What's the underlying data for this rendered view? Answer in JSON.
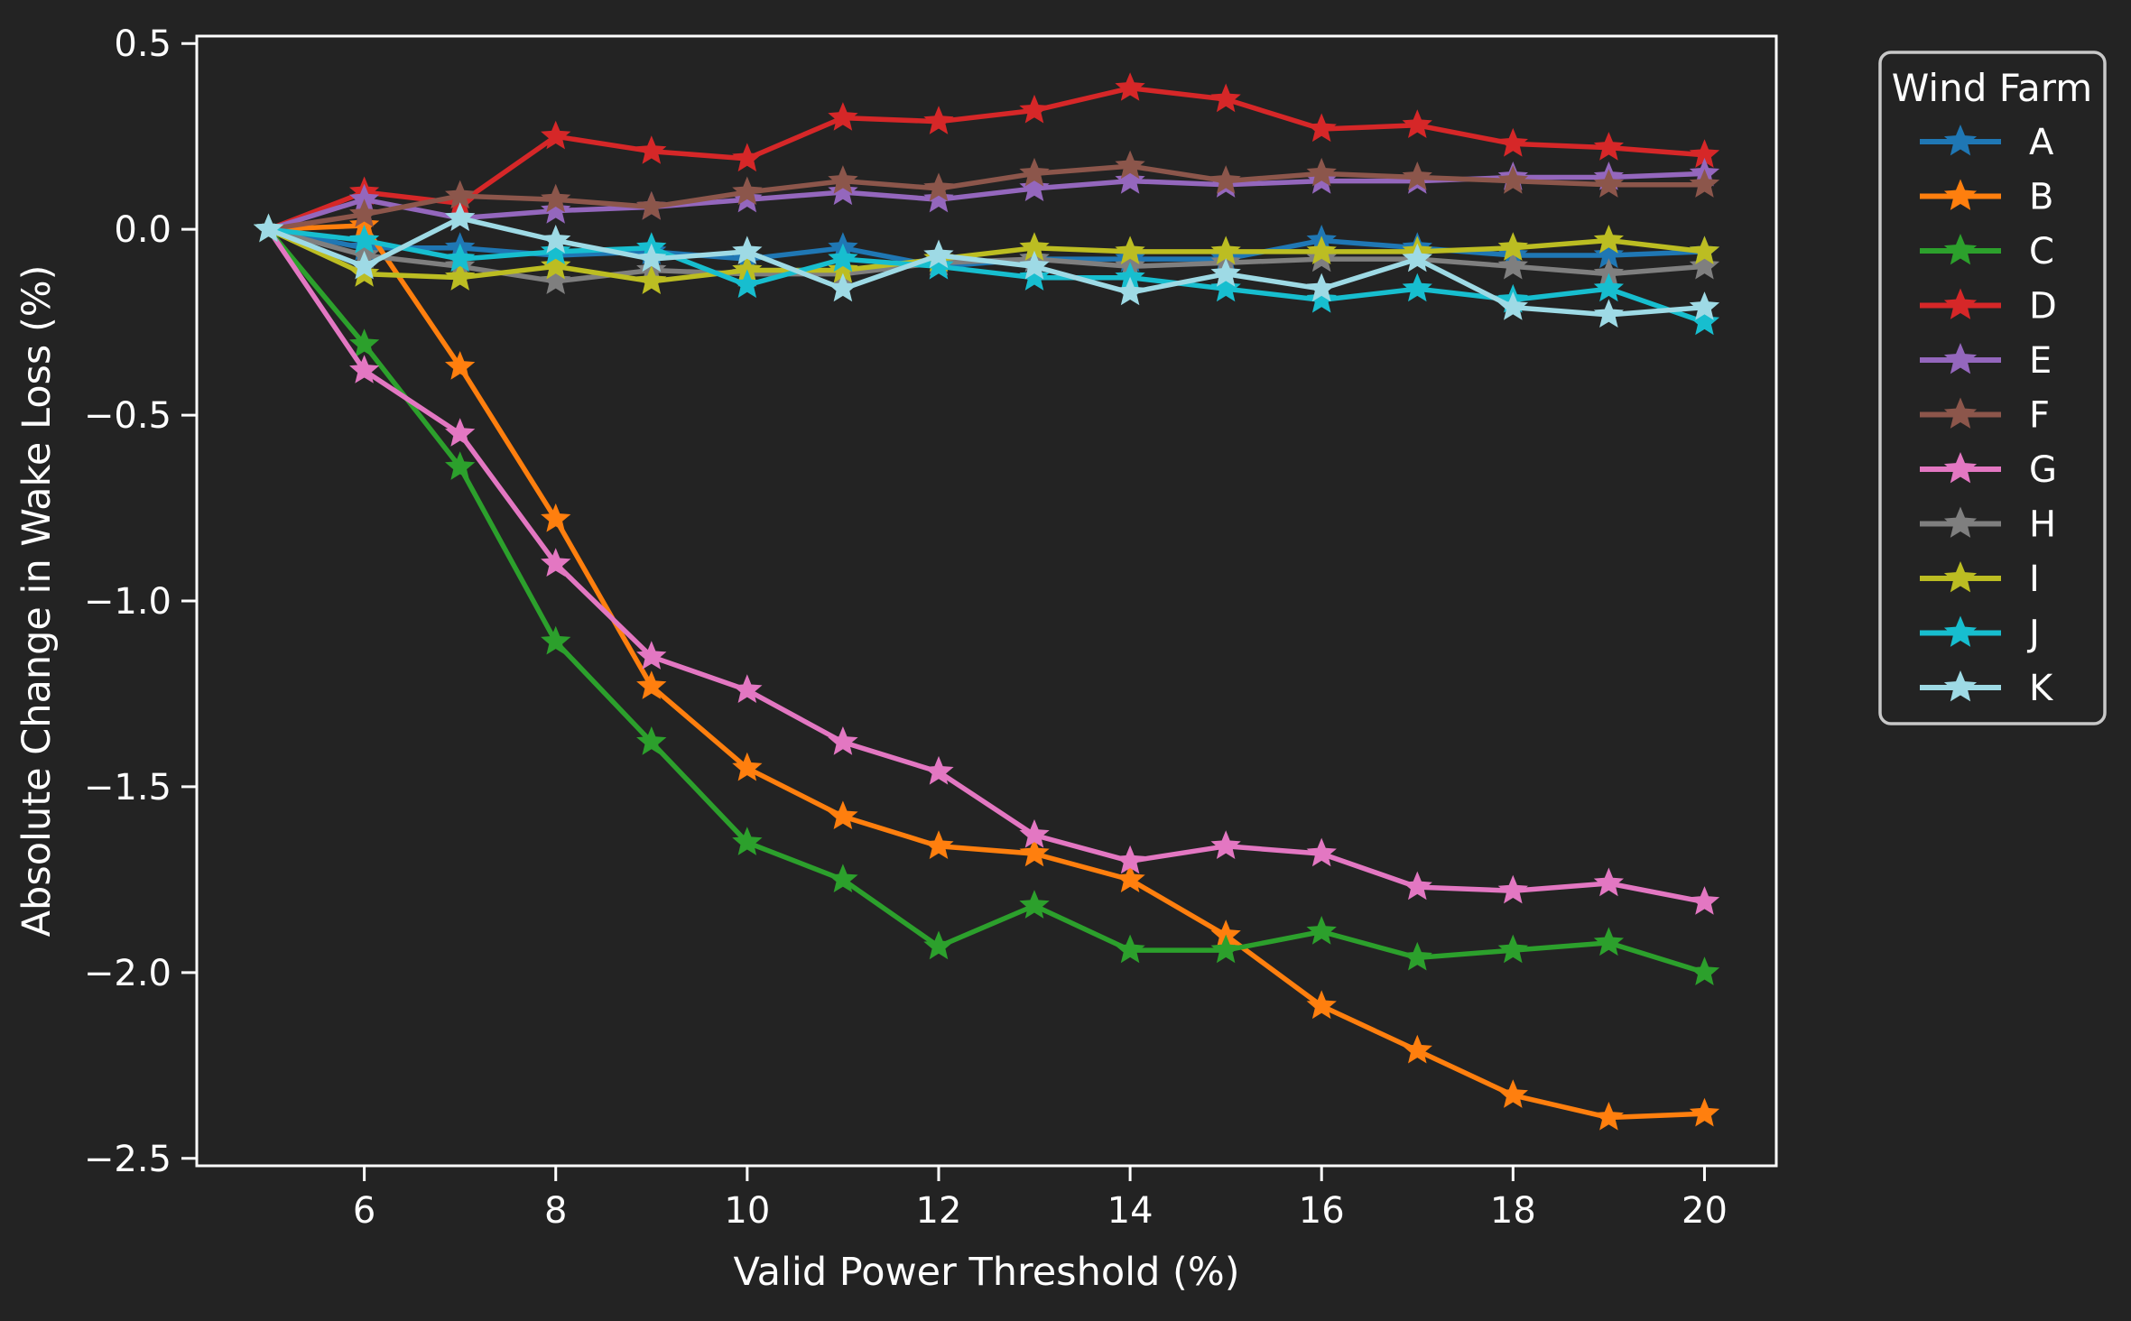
{
  "figure": {
    "background": "#232323",
    "foreground": "#ffffff",
    "legend_border": "#c8c8c8"
  },
  "chart_data": {
    "type": "line",
    "title": "",
    "xlabel": "Valid Power Threshold (%)",
    "ylabel": "Absolute Change in Wake Loss (%)",
    "marker": "star",
    "grid": false,
    "xlim": [
      4.25,
      20.75
    ],
    "ylim": [
      -2.52,
      0.52
    ],
    "xticks": [
      6,
      8,
      10,
      12,
      14,
      16,
      18,
      20
    ],
    "xtick_labels": [
      "6",
      "8",
      "10",
      "12",
      "14",
      "16",
      "18",
      "20"
    ],
    "yticks": [
      0.5,
      0.0,
      -0.5,
      -1.0,
      -1.5,
      -2.0,
      -2.5
    ],
    "ytick_labels": [
      "0.5",
      "0.0",
      "−0.5",
      "−1.0",
      "−1.5",
      "−2.0",
      "−2.5"
    ],
    "legend": {
      "title": "Wind Farm",
      "position": "outside upper right"
    },
    "x": [
      5,
      6,
      7,
      8,
      9,
      10,
      11,
      12,
      13,
      14,
      15,
      16,
      17,
      18,
      19,
      20
    ],
    "series": [
      {
        "name": "A",
        "color": "#1f77b4",
        "values": [
          0.0,
          -0.05,
          -0.05,
          -0.07,
          -0.06,
          -0.08,
          -0.05,
          -0.1,
          -0.08,
          -0.08,
          -0.08,
          -0.03,
          -0.05,
          -0.07,
          -0.07,
          -0.06
        ]
      },
      {
        "name": "B",
        "color": "#ff7f0e",
        "values": [
          0.0,
          0.01,
          -0.37,
          -0.78,
          -1.23,
          -1.45,
          -1.58,
          -1.66,
          -1.68,
          -1.75,
          -1.9,
          -2.09,
          -2.21,
          -2.33,
          -2.39,
          -2.38
        ]
      },
      {
        "name": "C",
        "color": "#2ca02c",
        "values": [
          0.0,
          -0.31,
          -0.64,
          -1.11,
          -1.38,
          -1.65,
          -1.75,
          -1.93,
          -1.82,
          -1.94,
          -1.94,
          -1.89,
          -1.96,
          -1.94,
          -1.92,
          -2.0
        ]
      },
      {
        "name": "D",
        "color": "#d62728",
        "values": [
          0.0,
          0.1,
          0.07,
          0.25,
          0.21,
          0.19,
          0.3,
          0.29,
          0.32,
          0.38,
          0.35,
          0.27,
          0.28,
          0.23,
          0.22,
          0.2
        ]
      },
      {
        "name": "E",
        "color": "#9467bd",
        "values": [
          0.0,
          0.08,
          0.03,
          0.05,
          0.06,
          0.08,
          0.1,
          0.08,
          0.11,
          0.13,
          0.12,
          0.13,
          0.13,
          0.14,
          0.14,
          0.15
        ]
      },
      {
        "name": "F",
        "color": "#8c564b",
        "values": [
          0.0,
          0.04,
          0.09,
          0.08,
          0.06,
          0.1,
          0.13,
          0.11,
          0.15,
          0.17,
          0.13,
          0.15,
          0.14,
          0.13,
          0.12,
          0.12
        ]
      },
      {
        "name": "G",
        "color": "#e377c2",
        "values": [
          0.0,
          -0.38,
          -0.55,
          -0.9,
          -1.15,
          -1.24,
          -1.38,
          -1.46,
          -1.63,
          -1.7,
          -1.66,
          -1.68,
          -1.77,
          -1.78,
          -1.76,
          -1.81
        ]
      },
      {
        "name": "H",
        "color": "#7f7f7f",
        "values": [
          0.0,
          -0.07,
          -0.1,
          -0.14,
          -0.11,
          -0.12,
          -0.12,
          -0.09,
          -0.08,
          -0.1,
          -0.09,
          -0.08,
          -0.08,
          -0.1,
          -0.12,
          -0.1
        ]
      },
      {
        "name": "I",
        "color": "#bcbd22",
        "values": [
          0.0,
          -0.12,
          -0.13,
          -0.1,
          -0.14,
          -0.11,
          -0.11,
          -0.08,
          -0.05,
          -0.06,
          -0.06,
          -0.06,
          -0.06,
          -0.05,
          -0.03,
          -0.06
        ]
      },
      {
        "name": "J",
        "color": "#17becf",
        "values": [
          0.0,
          -0.03,
          -0.08,
          -0.06,
          -0.05,
          -0.15,
          -0.08,
          -0.1,
          -0.13,
          -0.13,
          -0.16,
          -0.19,
          -0.16,
          -0.19,
          -0.16,
          -0.25
        ]
      },
      {
        "name": "K",
        "color": "#9edae5",
        "values": [
          0.0,
          -0.1,
          0.03,
          -0.03,
          -0.08,
          -0.06,
          -0.16,
          -0.07,
          -0.1,
          -0.17,
          -0.12,
          -0.16,
          -0.08,
          -0.21,
          -0.23,
          -0.21
        ]
      }
    ]
  }
}
